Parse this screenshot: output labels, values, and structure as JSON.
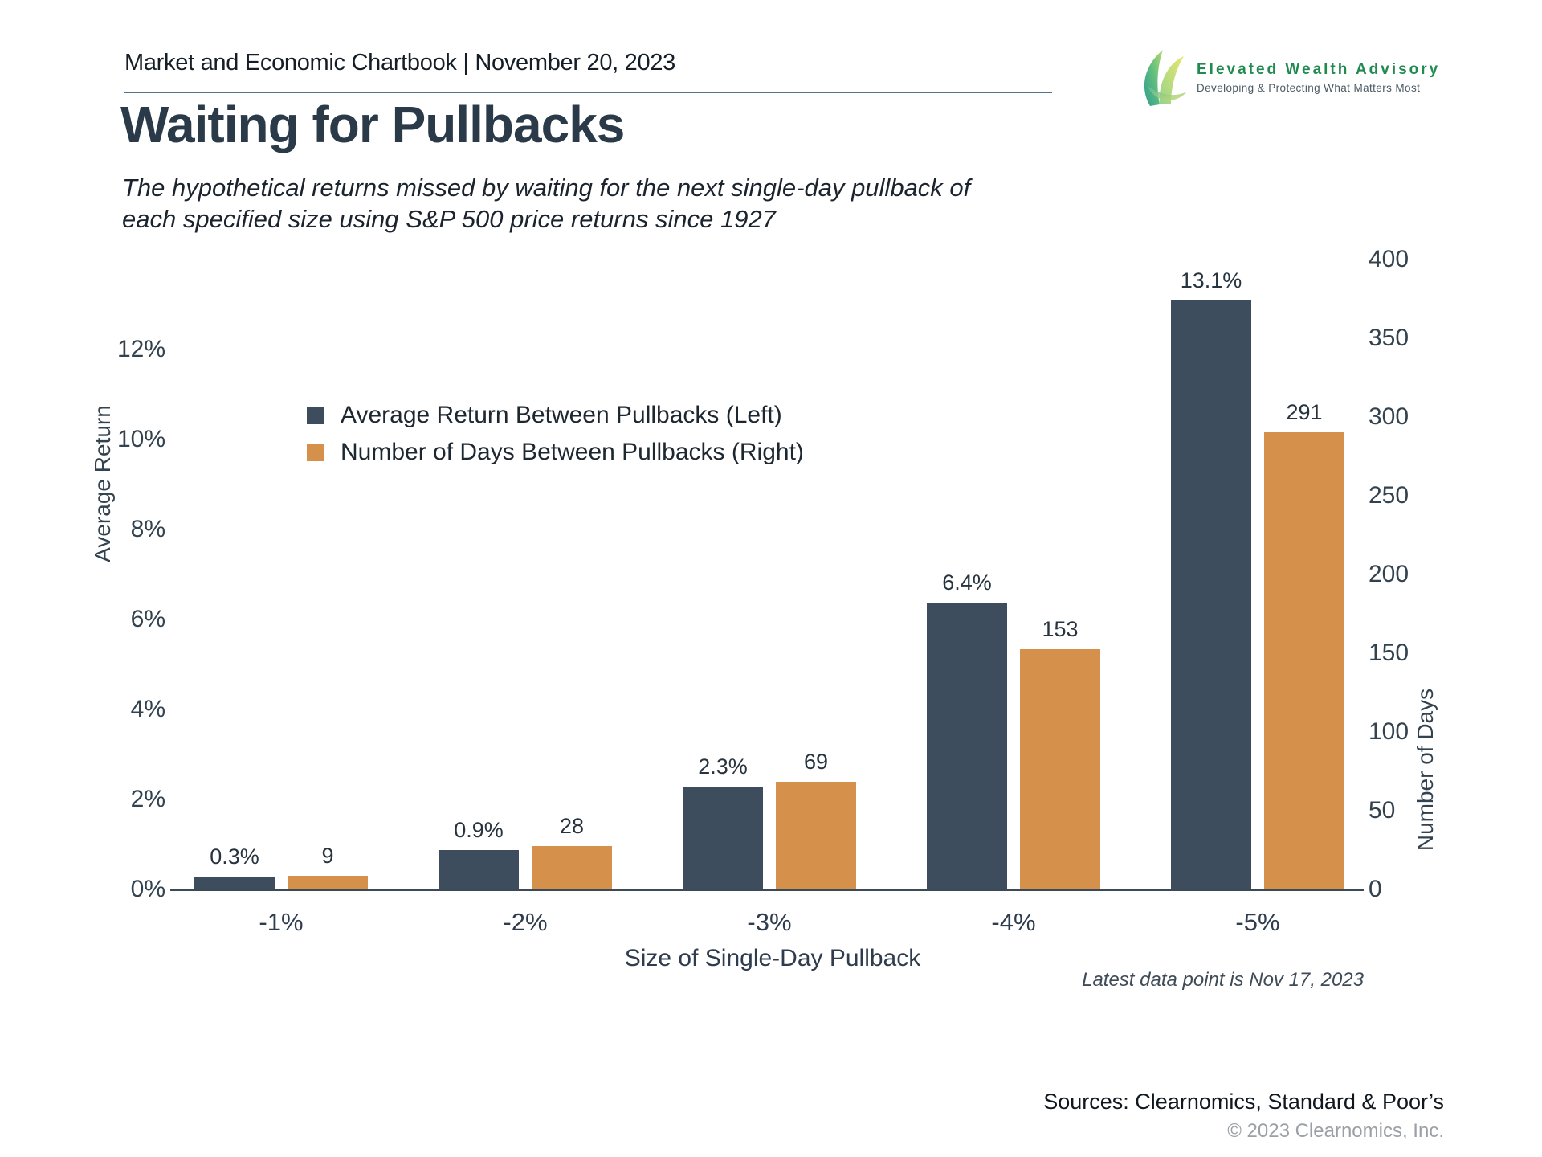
{
  "header": {
    "title": "Market and Economic Chartbook | November 20, 2023"
  },
  "logo": {
    "name": "Elevated Wealth Advisory",
    "tagline": "Developing & Protecting What Matters Most",
    "brand_green": "#218a50"
  },
  "page": {
    "title": "Waiting for Pullbacks",
    "subtitle": "The hypothetical returns missed by waiting for the next single-day pullback of each specified size using S&P 500 price returns since 1927"
  },
  "chart_data": {
    "type": "bar",
    "categories": [
      "-1%",
      "-2%",
      "-3%",
      "-4%",
      "-5%"
    ],
    "series": [
      {
        "name": "Average Return Between Pullbacks (Left)",
        "axis": "left",
        "color": "#3e4d5d",
        "values": [
          0.3,
          0.9,
          2.3,
          6.4,
          13.1
        ],
        "labels": [
          "0.3%",
          "0.9%",
          "2.3%",
          "6.4%",
          "13.1%"
        ]
      },
      {
        "name": "Number of Days Between Pullbacks (Right)",
        "axis": "right",
        "color": "#d5904c",
        "values": [
          9,
          28,
          69,
          153,
          291
        ],
        "labels": [
          "9",
          "28",
          "69",
          "153",
          "291"
        ]
      }
    ],
    "xlabel": "Size of Single-Day Pullback",
    "left_axis": {
      "label": "Average Return",
      "ticks": [
        "0%",
        "2%",
        "4%",
        "6%",
        "8%",
        "10%",
        "12%"
      ],
      "tick_values": [
        0,
        2,
        4,
        6,
        8,
        10,
        12
      ],
      "range": [
        0,
        14.3
      ]
    },
    "right_axis": {
      "label": "Number of Days",
      "ticks": [
        "0",
        "50",
        "100",
        "150",
        "200",
        "250",
        "300",
        "350",
        "400"
      ],
      "tick_values": [
        0,
        50,
        100,
        150,
        200,
        250,
        300,
        350,
        400
      ],
      "range": [
        0,
        400
      ]
    },
    "legend_position": "upper-left-inside",
    "grid": false,
    "note": "Latest data point is Nov 17, 2023"
  },
  "footer": {
    "sources": "Sources: Clearnomics, Standard & Poor’s",
    "copyright": "© 2023 Clearnomics, Inc."
  }
}
